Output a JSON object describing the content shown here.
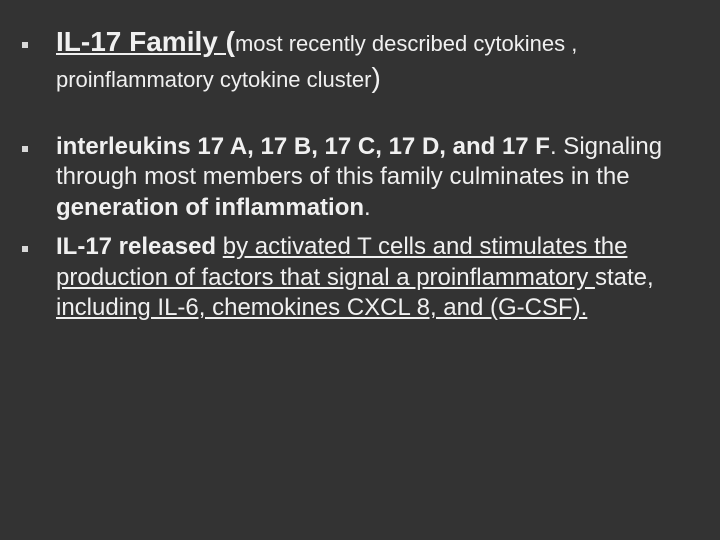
{
  "background_color": "#333333",
  "text_color": "#f0f0f0",
  "bullet_color": "#d8d8d8",
  "font_family": "Arial",
  "item1": {
    "r1": "IL-17 Family (",
    "r2": "most recently described cytokines , proinflammatory cytokine cluster",
    "r3": ")"
  },
  "item2": {
    "r1": " interleukins 17 A, 17 B, 17 C, 17 D, and 17 F",
    "r2": ".  Signaling through most members of this family culminates in the ",
    "r3": "generation of inflammation",
    "r4": "."
  },
  "item3": {
    "r1": "IL-17 released",
    "r2": " ",
    "r3": "by activated T cells and stimulates the production of factors that signal a proinflammatory ",
    "r4": "state, ",
    "r5": "including IL-6,  chemokines CXCL 8, and (G-CSF)."
  }
}
